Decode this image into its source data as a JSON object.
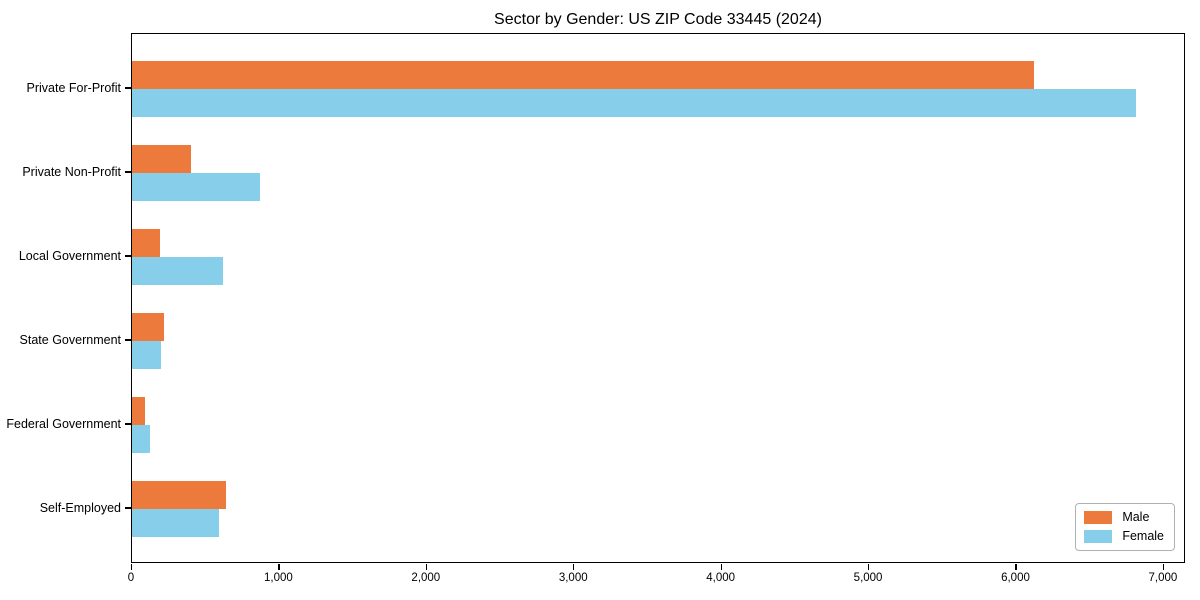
{
  "chart_data": {
    "type": "bar",
    "orientation": "horizontal",
    "title": "Sector by Gender: US ZIP Code 33445 (2024)",
    "categories": [
      "Private For-Profit",
      "Private Non-Profit",
      "Local Government",
      "State Government",
      "Federal Government",
      "Self-Employed"
    ],
    "series": [
      {
        "name": "Male",
        "color": "#EC7A3C",
        "values": [
          6120,
          400,
          190,
          220,
          90,
          640
        ]
      },
      {
        "name": "Female",
        "color": "#87CEEB",
        "values": [
          6810,
          870,
          620,
          200,
          125,
          590
        ]
      }
    ],
    "xlim": [
      0,
      7150
    ],
    "xticks": [
      0,
      1000,
      2000,
      3000,
      4000,
      5000,
      6000,
      7000
    ],
    "xtick_labels": [
      "0",
      "1,000",
      "2,000",
      "3,000",
      "4,000",
      "5,000",
      "6,000",
      "7,000"
    ],
    "xlabel": "",
    "ylabel": "",
    "grid": false,
    "legend": {
      "position": "lower right",
      "entries": [
        "Male",
        "Female"
      ]
    },
    "background": "#FFFFFF",
    "text_color": "#000000"
  }
}
